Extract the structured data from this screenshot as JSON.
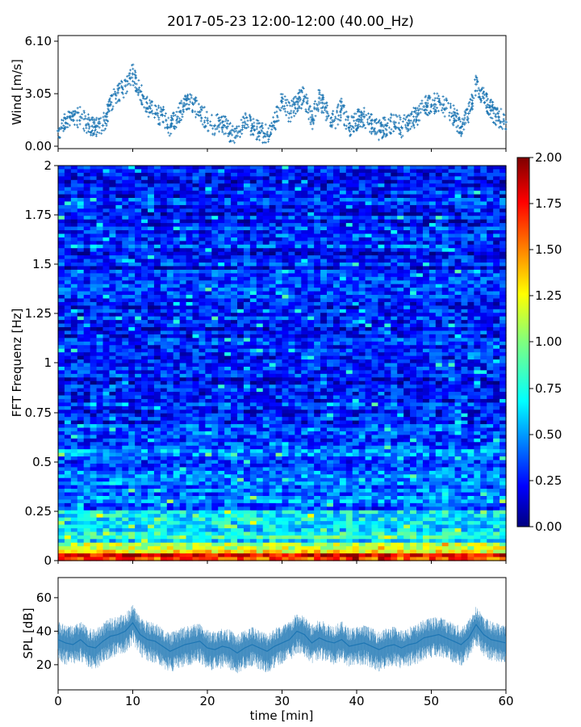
{
  "figure_title": "2017-05-23 12:00-12:00 (40.00_Hz)",
  "chart_data": [
    {
      "type": "scatter",
      "ylabel": "Wind [m/s]",
      "ylim": [
        0,
        6.1
      ],
      "yticks": [
        "0.00",
        "3.05",
        "6.10"
      ],
      "xlim": [
        0,
        60
      ],
      "marker": "+",
      "color": "#1f77b4",
      "x": [
        0,
        1,
        2,
        3,
        4,
        5,
        6,
        7,
        8,
        9,
        10,
        11,
        12,
        13,
        14,
        15,
        16,
        17,
        18,
        19,
        20,
        21,
        22,
        23,
        24,
        25,
        26,
        27,
        28,
        29,
        30,
        31,
        32,
        33,
        34,
        35,
        36,
        37,
        38,
        39,
        40,
        41,
        42,
        43,
        44,
        45,
        46,
        47,
        48,
        49,
        50,
        51,
        52,
        53,
        54,
        55,
        56,
        57,
        58,
        59,
        60
      ],
      "y": [
        0.9,
        1.6,
        1.5,
        1.7,
        1.3,
        1.1,
        1.2,
        2.4,
        3.1,
        3.5,
        4.2,
        3.2,
        2.2,
        1.9,
        1.8,
        1.1,
        1.7,
        2.4,
        2.5,
        2.0,
        1.5,
        1.2,
        1.4,
        0.8,
        0.6,
        1.4,
        1.2,
        0.8,
        0.7,
        1.4,
        2.6,
        1.9,
        2.6,
        2.9,
        1.5,
        2.8,
        2.0,
        1.5,
        2.2,
        1.1,
        1.5,
        1.7,
        1.3,
        0.9,
        1.2,
        1.4,
        1.1,
        1.5,
        1.7,
        2.3,
        2.4,
        2.6,
        2.2,
        1.8,
        1.1,
        1.9,
        3.6,
        2.8,
        2.1,
        1.7,
        1.4
      ]
    },
    {
      "type": "heatmap",
      "ylabel": "FFT Frequenz [Hz]",
      "ylim": [
        0,
        2
      ],
      "yticks": [
        "0",
        "0.25",
        "0.5",
        "0.75",
        "1",
        "1.25",
        "1.5",
        "1.75",
        "2"
      ],
      "xlim": [
        0,
        60
      ],
      "colormap": "jet",
      "colorbar": {
        "range": [
          0,
          2
        ],
        "ticks": [
          "0.00",
          "0.25",
          "0.50",
          "0.75",
          "1.00",
          "1.25",
          "1.50",
          "1.75",
          "2.00"
        ]
      },
      "colormap_stops": [
        "#00007f",
        "#0000ff",
        "#007fff",
        "#00ffff",
        "#7fff7f",
        "#ffff00",
        "#ff7f00",
        "#ff0000",
        "#7f0000"
      ]
    },
    {
      "type": "line",
      "ylabel": "SPL [dB]",
      "xlabel": "time [min]",
      "ylim": [
        5,
        72
      ],
      "yticks": [
        "20",
        "40",
        "60"
      ],
      "ytick_values": [
        20,
        40,
        60
      ],
      "xlim": [
        0,
        60
      ],
      "xticks": [
        "0",
        "10",
        "20",
        "30",
        "40",
        "50",
        "60"
      ],
      "xtick_values": [
        0,
        10,
        20,
        30,
        40,
        50,
        60
      ],
      "color": "#1f77b4",
      "x": [
        0,
        1,
        2,
        3,
        4,
        5,
        6,
        7,
        8,
        9,
        10,
        11,
        12,
        13,
        14,
        15,
        16,
        17,
        18,
        19,
        20,
        21,
        22,
        23,
        24,
        25,
        26,
        27,
        28,
        29,
        30,
        31,
        32,
        33,
        34,
        35,
        36,
        37,
        38,
        39,
        40,
        41,
        42,
        43,
        44,
        45,
        46,
        47,
        48,
        49,
        50,
        51,
        52,
        53,
        54,
        55,
        56,
        57,
        58,
        59,
        60
      ],
      "y": [
        35,
        33,
        32,
        35,
        31,
        30,
        34,
        37,
        38,
        40,
        45,
        38,
        35,
        34,
        31,
        28,
        30,
        32,
        33,
        34,
        30,
        29,
        31,
        30,
        27,
        30,
        32,
        30,
        28,
        31,
        33,
        35,
        40,
        38,
        33,
        36,
        34,
        33,
        35,
        31,
        32,
        33,
        31,
        29,
        31,
        32,
        30,
        32,
        33,
        36,
        37,
        38,
        36,
        34,
        32,
        36,
        44,
        38,
        35,
        34,
        33
      ]
    }
  ]
}
